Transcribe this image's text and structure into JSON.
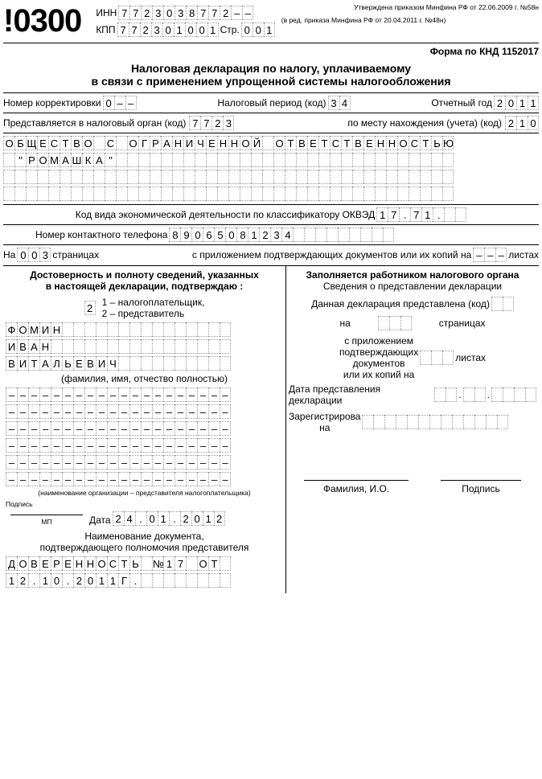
{
  "barcode": "!0300",
  "inn_label": "ИНН",
  "inn": [
    "7",
    "7",
    "2",
    "3",
    "0",
    "3",
    "8",
    "7",
    "7",
    "2",
    "",
    ""
  ],
  "kpp_label": "КПП",
  "kpp": [
    "7",
    "7",
    "2",
    "3",
    "0",
    "1",
    "0",
    "0",
    "1"
  ],
  "str_label": "Стр.",
  "str": [
    "0",
    "0",
    "1"
  ],
  "approved1": "Утверждена приказом Минфина РФ от 22.06.2009 г. №58н",
  "approved2": "(в ред. приказа Минфина РФ от 20.04.2011 г. №48н)",
  "form_code": "Форма по КНД 1152017",
  "title1": "Налоговая декларация по налогу, уплачиваемому",
  "title2": "в связи с применением упрощенной системы налогообложения",
  "corr_label": "Номер корректировки",
  "corr": [
    "0",
    "",
    ""
  ],
  "period_label": "Налоговый период (код)",
  "period": [
    "3",
    "4"
  ],
  "year_label": "Отчетный год",
  "year": [
    "2",
    "0",
    "1",
    "1"
  ],
  "organ_label": "Представляется в налоговый орган (код)",
  "organ": [
    "7",
    "7",
    "2",
    "3"
  ],
  "place_label": "по месту нахождения (учета) (код)",
  "place": [
    "2",
    "1",
    "0"
  ],
  "org_name_row1": [
    "О",
    "Б",
    "Щ",
    "Е",
    "С",
    "Т",
    "В",
    "О",
    "",
    "С",
    "",
    "О",
    "Г",
    "Р",
    "А",
    "Н",
    "И",
    "Ч",
    "Е",
    "Н",
    "Н",
    "О",
    "Й",
    "",
    "О",
    "Т",
    "В",
    "Е",
    "Т",
    "С",
    "Т",
    "В",
    "Е",
    "Н",
    "Н",
    "О",
    "С",
    "Т",
    "Ь",
    "Ю"
  ],
  "org_name_row2": [
    "",
    "\"",
    "Р",
    "О",
    "М",
    "А",
    "Ш",
    "К",
    "А",
    "\"",
    "",
    "",
    "",
    "",
    "",
    "",
    "",
    "",
    "",
    "",
    "",
    "",
    "",
    "",
    "",
    "",
    "",
    "",
    "",
    "",
    "",
    "",
    "",
    "",
    "",
    "",
    "",
    "",
    "",
    ""
  ],
  "org_name_row3": [
    "",
    "",
    "",
    "",
    "",
    "",
    "",
    "",
    "",
    "",
    "",
    "",
    "",
    "",
    "",
    "",
    "",
    "",
    "",
    "",
    "",
    "",
    "",
    "",
    "",
    "",
    "",
    "",
    "",
    "",
    "",
    "",
    "",
    "",
    "",
    "",
    "",
    "",
    "",
    ""
  ],
  "org_name_row4": [
    "",
    "",
    "",
    "",
    "",
    "",
    "",
    "",
    "",
    "",
    "",
    "",
    "",
    "",
    "",
    "",
    "",
    "",
    "",
    "",
    "",
    "",
    "",
    "",
    "",
    "",
    "",
    "",
    "",
    "",
    "",
    "",
    "",
    "",
    "",
    "",
    "",
    "",
    "",
    ""
  ],
  "okved_label": "Код вида экономической деятельности по классификатору ОКВЭД",
  "okved": [
    "1",
    "7",
    ".",
    "7",
    "1",
    ".",
    "",
    ""
  ],
  "phone_label": "Номер контактного телефона",
  "phone": [
    "8",
    "9",
    "0",
    "6",
    "5",
    "0",
    "8",
    "1",
    "2",
    "3",
    "4",
    "",
    "",
    "",
    "",
    "",
    "",
    "",
    "",
    ""
  ],
  "pages_prefix": "На",
  "pages": [
    "0",
    "0",
    "3"
  ],
  "pages_suffix": "страницах",
  "attach_label": "с приложением подтверждающих документов или их копий на",
  "attach": [
    "",
    "",
    ""
  ],
  "sheets": "листах",
  "left_title1": "Достоверность и полноту сведений, указанных",
  "left_title2": "в настоящей декларации, подтверждаю :",
  "signer_code": [
    "2"
  ],
  "signer_opt1": "1 – налогоплательщик,",
  "signer_opt2": "2 – представитель",
  "last_name": [
    "Ф",
    "О",
    "М",
    "И",
    "Н",
    "",
    "",
    "",
    "",
    "",
    "",
    "",
    "",
    "",
    "",
    "",
    "",
    "",
    "",
    ""
  ],
  "first_name": [
    "И",
    "В",
    "А",
    "Н",
    "",
    "",
    "",
    "",
    "",
    "",
    "",
    "",
    "",
    "",
    "",
    "",
    "",
    "",
    "",
    ""
  ],
  "patronymic": [
    "В",
    "И",
    "Т",
    "А",
    "Л",
    "Ь",
    "Е",
    "В",
    "И",
    "Ч",
    "",
    "",
    "",
    "",
    "",
    "",
    "",
    "",
    "",
    ""
  ],
  "fio_caption": "(фамилия, имя, отчество полностью)",
  "rep_row1": [
    "",
    "",
    "",
    "",
    "",
    "",
    "",
    "",
    "",
    "",
    "",
    "",
    "",
    "",
    "",
    "",
    "",
    "",
    "",
    ""
  ],
  "rep_row2": [
    "",
    "",
    "",
    "",
    "",
    "",
    "",
    "",
    "",
    "",
    "",
    "",
    "",
    "",
    "",
    "",
    "",
    "",
    "",
    ""
  ],
  "rep_row3": [
    "",
    "",
    "",
    "",
    "",
    "",
    "",
    "",
    "",
    "",
    "",
    "",
    "",
    "",
    "",
    "",
    "",
    "",
    "",
    ""
  ],
  "rep_row4": [
    "",
    "",
    "",
    "",
    "",
    "",
    "",
    "",
    "",
    "",
    "",
    "",
    "",
    "",
    "",
    "",
    "",
    "",
    "",
    ""
  ],
  "rep_row5": [
    "",
    "",
    "",
    "",
    "",
    "",
    "",
    "",
    "",
    "",
    "",
    "",
    "",
    "",
    "",
    "",
    "",
    "",
    "",
    ""
  ],
  "rep_row6": [
    "",
    "",
    "",
    "",
    "",
    "",
    "",
    "",
    "",
    "",
    "",
    "",
    "",
    "",
    "",
    "",
    "",
    "",
    "",
    ""
  ],
  "rep_caption": "(наименование организации – представителя налогоплательщика)",
  "sign_label": "Подпись",
  "mp": "МП",
  "date_label": "Дата",
  "sign_date": [
    "2",
    "4",
    ".",
    "0",
    "1",
    ".",
    "2",
    "0",
    "1",
    "2"
  ],
  "doc_caption1": "Наименование документа,",
  "doc_caption2": "подтверждающего полномочия представителя",
  "doc_row1": [
    "Д",
    "О",
    "В",
    "Е",
    "Р",
    "Е",
    "Н",
    "Н",
    "О",
    "С",
    "Т",
    "Ь",
    "",
    "№",
    "1",
    "7",
    "",
    "О",
    "Т",
    ""
  ],
  "doc_row2": [
    "1",
    "2",
    ".",
    "1",
    "0",
    ".",
    "2",
    "0",
    "1",
    "1",
    "Г",
    ".",
    "",
    "",
    "",
    "",
    "",
    "",
    "",
    ""
  ],
  "right_title": "Заполняется работником налогового органа",
  "right_sub": "Сведения о представлении декларации",
  "decl_presented": "Данная декларация представлена (код)",
  "decl_code": [
    "",
    ""
  ],
  "on_label": "на",
  "right_pages": [
    "",
    "",
    ""
  ],
  "right_pages_suffix": "страницах",
  "right_attach1": "с приложением",
  "right_attach2": "подтверждающих",
  "right_attach3": "документов",
  "right_attach4": "или их копий на",
  "right_attach_cells": [
    "",
    "",
    ""
  ],
  "right_sheets": "листах",
  "decl_date_label1": "Дата представления",
  "decl_date_label2": "декларации",
  "decl_date_d": [
    "",
    ""
  ],
  "decl_date_m": [
    "",
    ""
  ],
  "decl_date_y": [
    "",
    "",
    "",
    ""
  ],
  "reg_label1": "Зарегистрирова",
  "reg_label2": "на",
  "reg_cells": [
    "",
    "",
    "",
    "",
    "",
    "",
    "",
    "",
    "",
    "",
    "",
    "",
    ""
  ],
  "fio_label": "Фамилия, И.О.",
  "sign2_label": "Подпись"
}
